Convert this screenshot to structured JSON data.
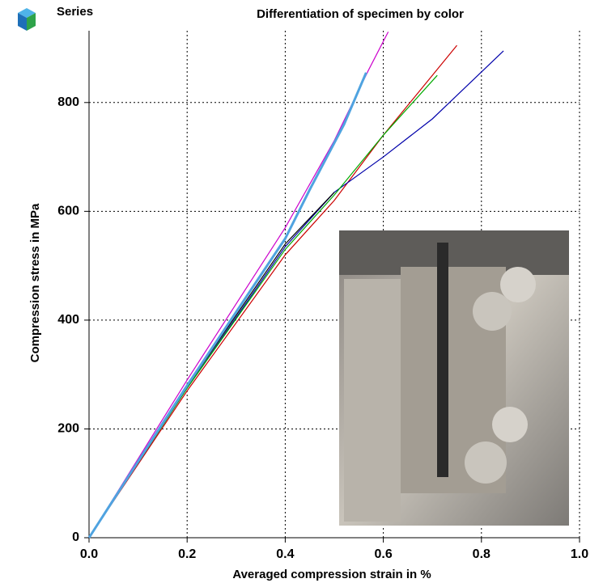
{
  "chart_data": {
    "type": "line",
    "title": "Differentiation of specimen by color",
    "legend_title": "Series",
    "x_label": "Averaged compression strain in %",
    "y_label": "Compression stress in MPa",
    "xlim": [
      0,
      1
    ],
    "ylim": [
      0,
      932
    ],
    "xticks": [
      {
        "value": 0,
        "label": "0.0"
      },
      0.2,
      0.4,
      0.6,
      0.8,
      {
        "value": 1,
        "label": "1.0"
      }
    ],
    "yticks": [
      0,
      200,
      400,
      600,
      800
    ],
    "grid": true,
    "series": [
      {
        "color": "#cc0000",
        "x": [
          0,
          0.2,
          0.4,
          0.5,
          0.6,
          0.75
        ],
        "values": [
          0,
          270,
          520,
          620,
          740,
          905
        ]
      },
      {
        "color": "#0000aa",
        "x": [
          0,
          0.2,
          0.4,
          0.5,
          0.6,
          0.7,
          0.845
        ],
        "values": [
          0,
          275,
          535,
          635,
          700,
          770,
          895
        ]
      },
      {
        "color": "#00aa00",
        "x": [
          0,
          0.2,
          0.4,
          0.5,
          0.6,
          0.71
        ],
        "values": [
          0,
          275,
          530,
          630,
          740,
          850
        ]
      },
      {
        "color": "#000000",
        "x": [
          0,
          0.2,
          0.4,
          0.5
        ],
        "values": [
          0,
          278,
          540,
          635
        ]
      },
      {
        "color": "#cc00cc",
        "x": [
          0,
          0.2,
          0.4,
          0.5,
          0.57,
          0.61
        ],
        "values": [
          0,
          290,
          570,
          730,
          860,
          930
        ]
      },
      {
        "color": "#4fa3e0",
        "x": [
          0,
          0.2,
          0.4,
          0.45,
          0.52,
          0.565
        ],
        "values": [
          0,
          280,
          550,
          640,
          760,
          855
        ]
      }
    ]
  }
}
